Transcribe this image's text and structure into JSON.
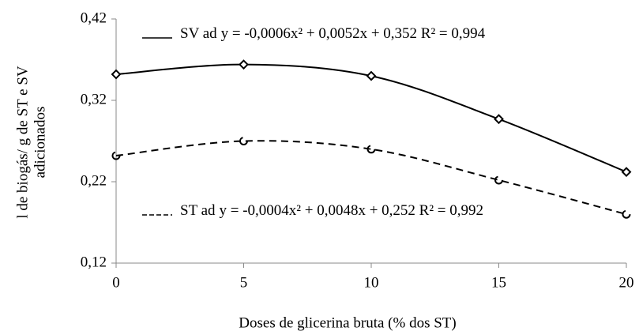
{
  "chart_data": {
    "type": "scatter",
    "x_label": "Doses de glicerina bruta (% dos ST)",
    "y_label": [
      "l de biogás/ g de ST e SV",
      "adicionados"
    ],
    "x": [
      0,
      5,
      10,
      15,
      20
    ],
    "series": [
      {
        "name": "SV ad",
        "color": "#000000",
        "line": "solid",
        "marker": "diamond",
        "values": [
          0.352,
          0.364,
          0.35,
          0.297,
          0.232
        ],
        "annotation": "y = -0,0006x² + 0,0052x + 0,352 R² = 0,994"
      },
      {
        "name": "ST ad",
        "color": "#000000",
        "line": "dashed",
        "marker": "open-circle",
        "values": [
          0.252,
          0.27,
          0.26,
          0.222,
          0.18
        ],
        "annotation": "y = -0,0004x² + 0,0048x + 0,252 R² = 0,992"
      }
    ],
    "xlim": [
      0,
      20
    ],
    "xticks": [
      0,
      5,
      10,
      15,
      20
    ],
    "ylim": [
      0.12,
      0.42
    ],
    "yticks": [
      {
        "value": 0.12,
        "label": "0,12"
      },
      {
        "value": 0.22,
        "label": "0,22"
      },
      {
        "value": 0.32,
        "label": "0,32"
      },
      {
        "value": 0.42,
        "label": "0,42"
      }
    ],
    "grid": false
  }
}
